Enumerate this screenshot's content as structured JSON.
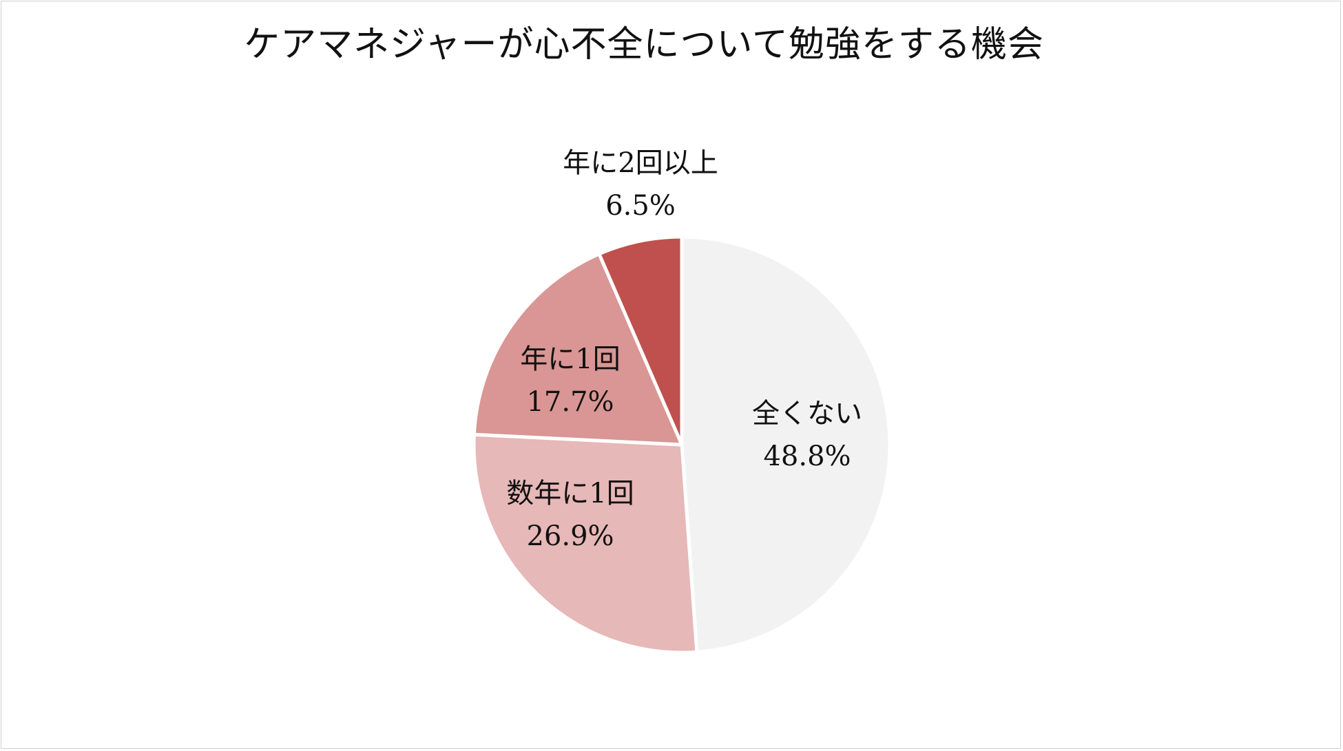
{
  "chart_data": {
    "type": "pie",
    "title": "ケアマネジャーが心不全について勉強をする機会",
    "start_angle_deg": 0,
    "direction": "clockwise",
    "slices": [
      {
        "label": "全くない",
        "value": 48.8,
        "value_label": "48.8%",
        "color": "#f2f2f2"
      },
      {
        "label": "数年に1回",
        "value": 26.9,
        "value_label": "26.9%",
        "color": "#e6b8b7"
      },
      {
        "label": "年に1回",
        "value": 17.7,
        "value_label": "17.7%",
        "color": "#d99694"
      },
      {
        "label": "年に2回以上",
        "value": 6.5,
        "value_label": "6.5%",
        "color": "#c0504d"
      }
    ],
    "legend": "none"
  }
}
